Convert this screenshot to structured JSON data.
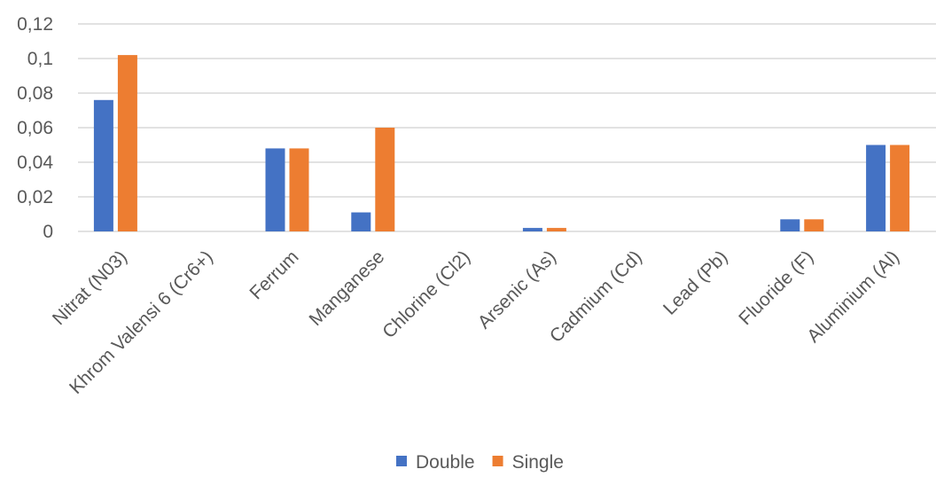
{
  "chart_data": {
    "type": "bar",
    "categories": [
      "Nitrat (N03)",
      "Khrom Valensi 6 (Cr6+)",
      "Ferrum",
      "Manganese",
      "Chlorine (Cl2)",
      "Arsenic (As)",
      "Cadmium (Cd)",
      "Lead (Pb)",
      "Fluoride (F)",
      "Aluminium (Al)"
    ],
    "series": [
      {
        "name": "Double",
        "color": "#4472c4",
        "values": [
          0.076,
          0,
          0.048,
          0.011,
          0,
          0.002,
          0,
          0,
          0.007,
          0.05
        ]
      },
      {
        "name": "Single",
        "color": "#ed7d31",
        "values": [
          0.102,
          0,
          0.048,
          0.06,
          0,
          0.002,
          0,
          0,
          0.007,
          0.05
        ]
      }
    ],
    "yticks": [
      "0",
      "0,02",
      "0,04",
      "0,06",
      "0,08",
      "0,1",
      "0,12"
    ],
    "ylim": [
      0,
      0.12
    ],
    "grid": true,
    "legend_position": "bottom"
  }
}
